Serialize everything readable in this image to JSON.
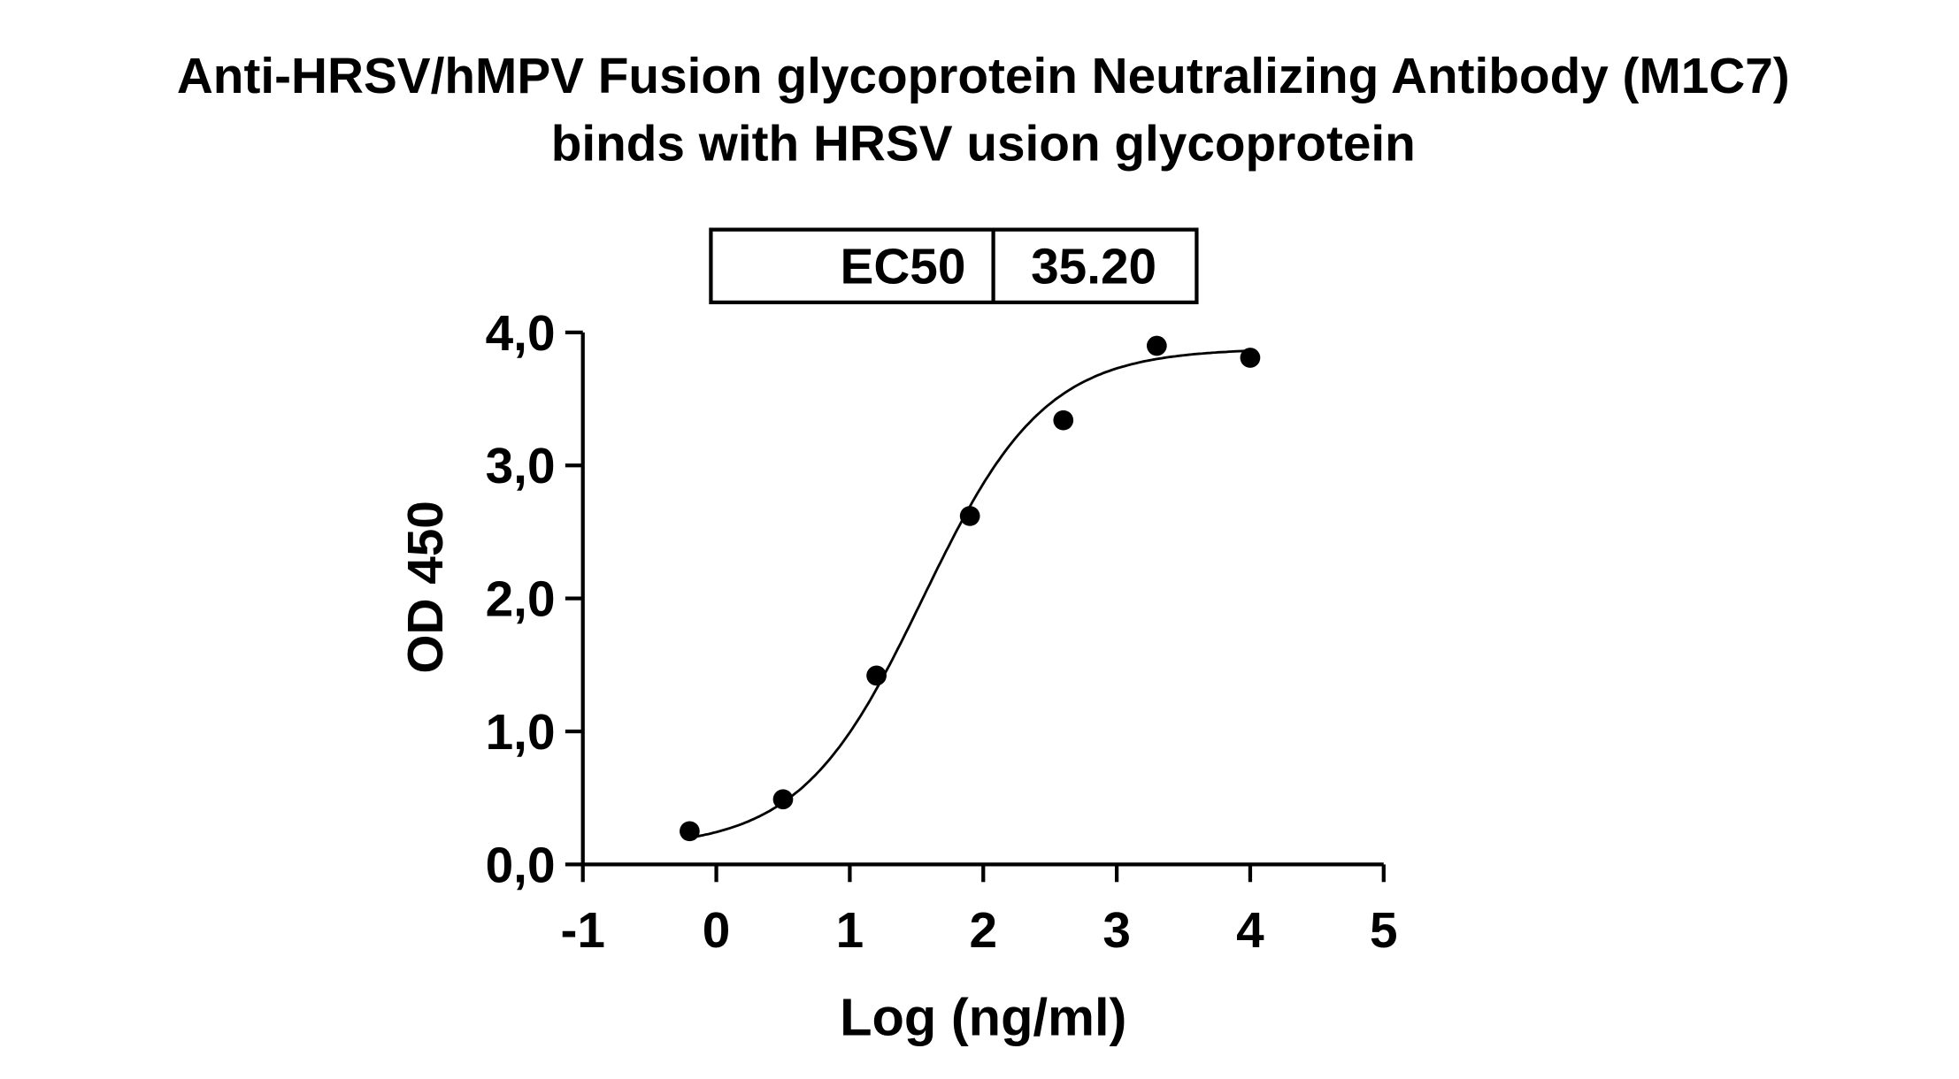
{
  "chart_data": {
    "type": "scatter",
    "title": [
      "Anti-HRSV/hMPV Fusion glycoprotein Neutralizing Antibody (M1C7)",
      "binds with HRSV usion glycoprotein"
    ],
    "xlabel": "Log (ng/ml)",
    "ylabel": "OD 450",
    "xlim": [
      -1,
      5
    ],
    "ylim": [
      0,
      4
    ],
    "x_ticks": [
      -1,
      0,
      1,
      2,
      3,
      4,
      5
    ],
    "x_tick_labels": [
      "-1",
      "0",
      "1",
      "2",
      "3",
      "4",
      "5"
    ],
    "y_ticks": [
      0,
      1,
      2,
      3,
      4
    ],
    "y_tick_labels": [
      "0,0",
      "1,0",
      "2,0",
      "3,0",
      "4,0"
    ],
    "grid": false,
    "points": {
      "x": [
        -0.2,
        0.5,
        1.2,
        1.9,
        2.6,
        3.3,
        4.0
      ],
      "y": [
        0.25,
        0.49,
        1.42,
        2.62,
        3.34,
        3.9,
        3.81
      ]
    },
    "fit": {
      "model": "four-parameter logistic",
      "bottom": 0.12,
      "top": 3.88,
      "ec50": 35.2,
      "hill": 0.95
    },
    "ec50_table": {
      "label": "EC50",
      "value": "35.20"
    },
    "colors": {
      "marks": "#000000",
      "background": "#ffffff"
    }
  }
}
